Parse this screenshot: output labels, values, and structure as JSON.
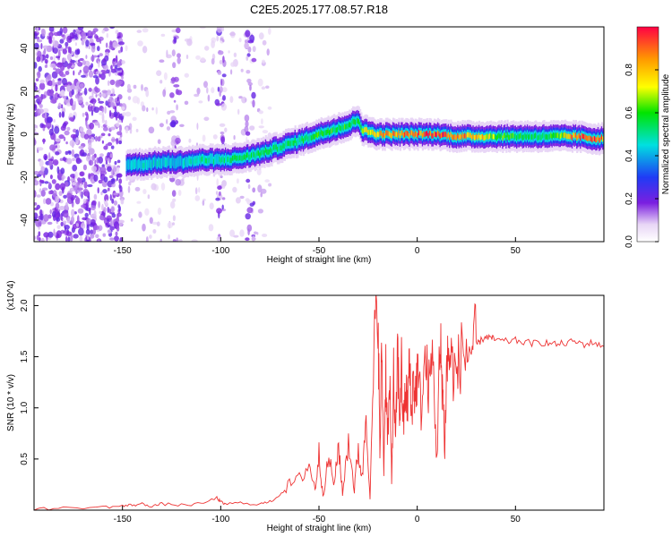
{
  "title": "C2E5.2025.177.08.57.R18",
  "chart_data": [
    {
      "type": "heatmap",
      "xlabel": "Height of straight line (km)",
      "ylabel": "Frequency (Hz)",
      "xlim": [
        -195,
        95
      ],
      "ylim": [
        -50,
        50
      ],
      "x_ticks": [
        -150,
        -100,
        -50,
        0,
        50
      ],
      "y_ticks": [
        -40,
        -20,
        0,
        20,
        40
      ],
      "colorbar": {
        "label": "Normalized spectral amplitude",
        "range": [
          0,
          1
        ],
        "ticks": [
          "0.0",
          "0.2",
          "0.4",
          "0.6",
          "0.8"
        ]
      },
      "ridge": {
        "x": [
          -148,
          -140,
          -130,
          -120,
          -110,
          -100,
          -90,
          -80,
          -70,
          -60,
          -50,
          -40,
          -35,
          -30,
          -28,
          -20,
          -10,
          0,
          10,
          20,
          30,
          40,
          50,
          60,
          70,
          80,
          90,
          95
        ],
        "y": [
          -14,
          -14,
          -13,
          -13,
          -12,
          -12,
          -11,
          -9,
          -6,
          -3,
          0,
          3,
          4,
          7,
          2,
          0,
          0,
          0,
          0,
          -1,
          -1,
          -1,
          -1,
          -1,
          -1,
          -1,
          -2,
          -2
        ],
        "amplitude": [
          0.4,
          0.45,
          0.45,
          0.45,
          0.5,
          0.5,
          0.55,
          0.55,
          0.55,
          0.55,
          0.6,
          0.6,
          0.6,
          0.55,
          0.7,
          0.85,
          0.9,
          0.9,
          0.95,
          0.9,
          0.85,
          0.65,
          0.6,
          0.55,
          0.6,
          0.9,
          0.95,
          0.85
        ]
      }
    },
    {
      "type": "line",
      "xlabel": "Height of straight line (km)",
      "ylabel": "SNR (10 * v/v)",
      "y_multiplier": "(x10^4)",
      "xlim": [
        -195,
        95
      ],
      "ylim": [
        0,
        2.1
      ],
      "x_ticks": [
        -150,
        -100,
        -50,
        0,
        50
      ],
      "y_ticks": [
        0.5,
        1.0,
        1.5,
        2.0
      ],
      "y_tick_labels": [
        "0.5",
        "1.0",
        "1.5",
        "2.0"
      ],
      "line_color": "#ee3333",
      "series": [
        {
          "x": [
            -195,
            -180,
            -160,
            -150,
            -145,
            -140,
            -135,
            -130,
            -120,
            -110,
            -102,
            -100,
            -98,
            -90,
            -80,
            -75,
            -70,
            -65,
            -60,
            -55,
            -52,
            -50,
            -48,
            -45,
            -42,
            -40,
            -38,
            -35,
            -32,
            -30,
            -28,
            -26,
            -24,
            -22,
            -20,
            -19,
            -18,
            -17,
            -16,
            -15,
            -14,
            -13,
            -12,
            -11,
            -10,
            -9,
            -8,
            -7,
            -6,
            -5,
            -4,
            -3,
            -2,
            -1,
            0,
            2,
            4,
            6,
            8,
            10,
            11,
            12,
            13,
            14,
            15,
            16,
            18,
            20,
            22,
            25,
            28,
            30,
            32,
            35,
            38,
            40,
            45,
            50,
            55,
            60,
            65,
            70,
            75,
            80,
            85,
            90,
            95
          ],
          "y": [
            0.01,
            0.02,
            0.03,
            0.04,
            0.05,
            0.06,
            0.04,
            0.06,
            0.05,
            0.06,
            0.12,
            0.08,
            0.06,
            0.07,
            0.06,
            0.08,
            0.15,
            0.25,
            0.3,
            0.45,
            0.2,
            0.55,
            0.15,
            0.5,
            0.25,
            0.65,
            0.15,
            0.7,
            0.2,
            0.6,
            0.3,
            1.0,
            0.1,
            1.5,
            2.1,
            0.5,
            1.6,
            0.4,
            1.4,
            0.7,
            1.2,
            0.3,
            1.3,
            0.6,
            1.6,
            0.9,
            1.4,
            0.8,
            1.2,
            1.0,
            1.45,
            0.9,
            1.3,
            1.1,
            1.35,
            1.0,
            1.45,
            1.2,
            1.5,
            0.45,
            1.3,
            1.5,
            1.2,
            0.6,
            1.4,
            1.55,
            1.4,
            1.3,
            1.5,
            1.55,
            1.6,
            1.62,
            1.65,
            1.7,
            1.68,
            1.66,
            1.65,
            1.66,
            1.64,
            1.63,
            1.64,
            1.62,
            1.63,
            1.65,
            1.62,
            1.64,
            1.6
          ]
        }
      ]
    }
  ]
}
